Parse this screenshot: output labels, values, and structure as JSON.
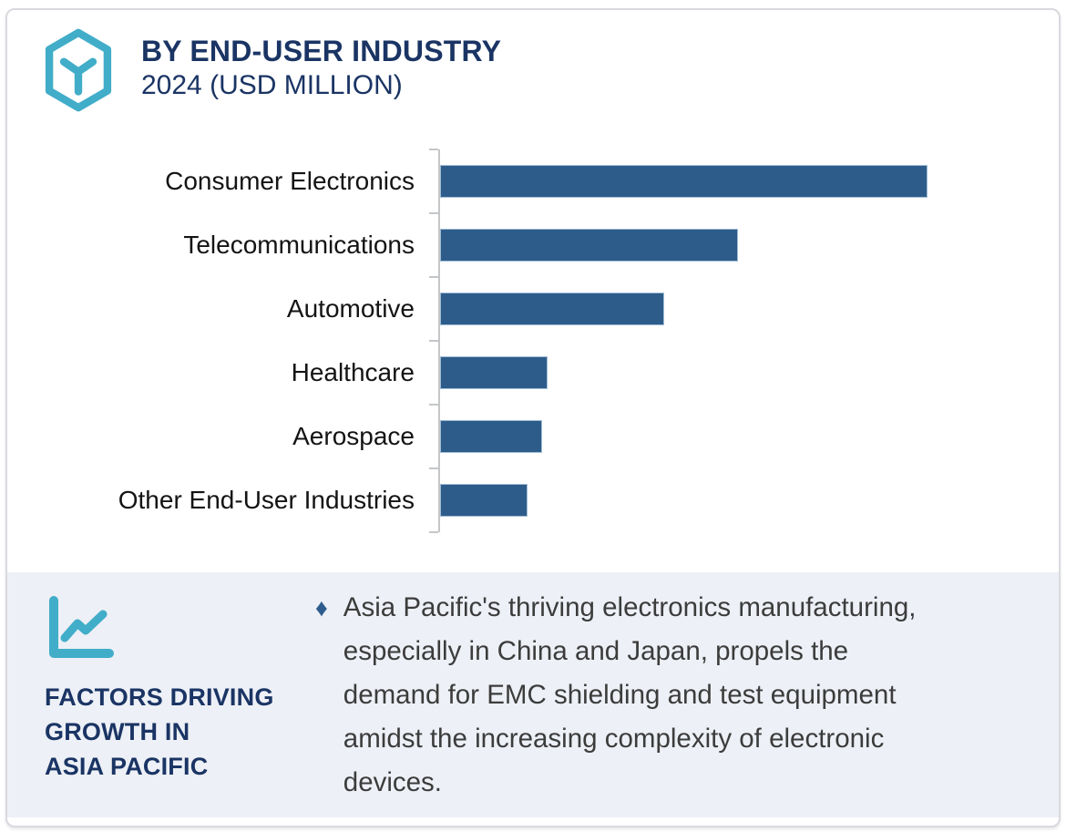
{
  "header": {
    "title": "BY END-USER INDUSTRY",
    "subtitle": "2024 (USD MILLION)",
    "logo_icon": "hexagon-cube-icon"
  },
  "chart_data": {
    "type": "bar",
    "orientation": "horizontal",
    "title": "BY END-USER INDUSTRY 2024 (USD MILLION)",
    "categories": [
      "Consumer Electronics",
      "Telecommunications",
      "Automotive",
      "Healthcare",
      "Aerospace",
      "Other End-User Industries"
    ],
    "values": [
      100,
      61,
      46,
      22,
      21,
      18
    ],
    "value_scale": "percent-of-max-bar",
    "xlabel": "",
    "ylabel": "",
    "xlim": [
      0,
      110
    ],
    "grid": false,
    "legend": false,
    "axis_value_labels_shown": false,
    "bar_color": "#2e5c8a",
    "axis_color": "#c5c6c8"
  },
  "factors": {
    "icon": "line-chart-icon",
    "heading": "FACTORS DRIVING\nGROWTH IN\nASIA PACIFIC",
    "bullets": [
      {
        "marker": "♦",
        "text": "Asia Pacific's thriving electronics manufacturing,\nespecially in China and Japan, propels the\ndemand for EMC shielding and test equipment\namidst the increasing complexity of electronic\ndevices."
      }
    ]
  },
  "colors": {
    "navy": "#1a3464",
    "teal": "#41adc9",
    "bar": "#2e5c8a",
    "section_bg": "#edf0f6",
    "axis": "#c5c6c8",
    "body_text": "#3c3c3c"
  }
}
